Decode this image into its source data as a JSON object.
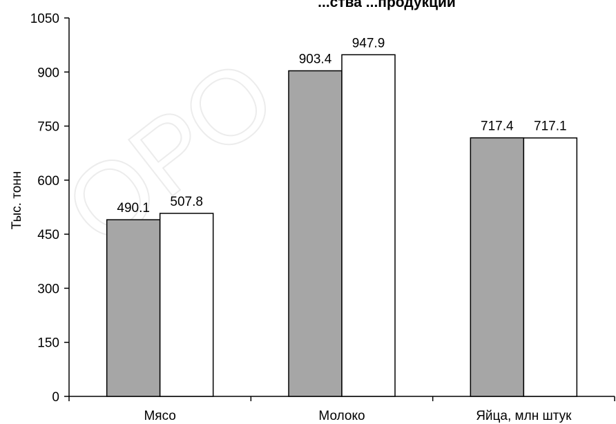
{
  "chart_data": {
    "type": "bar",
    "title": "...ства ...продукции",
    "ylabel": "Тыс. тонн",
    "xlabel": "",
    "categories": [
      "Мясо",
      "Молоко",
      "Яйца, млн штук"
    ],
    "series": [
      {
        "values": [
          490.1,
          903.4,
          717.4
        ],
        "color": "#a6a6a6"
      },
      {
        "values": [
          507.8,
          947.9,
          717.1
        ],
        "color": "#ffffff"
      }
    ],
    "ylim": [
      0,
      1050
    ],
    "yticks": [
      0,
      150,
      300,
      450,
      600,
      750,
      900,
      1050
    ],
    "grid": false,
    "legend": "none"
  },
  "watermark": {
    "text": "ОРО"
  }
}
